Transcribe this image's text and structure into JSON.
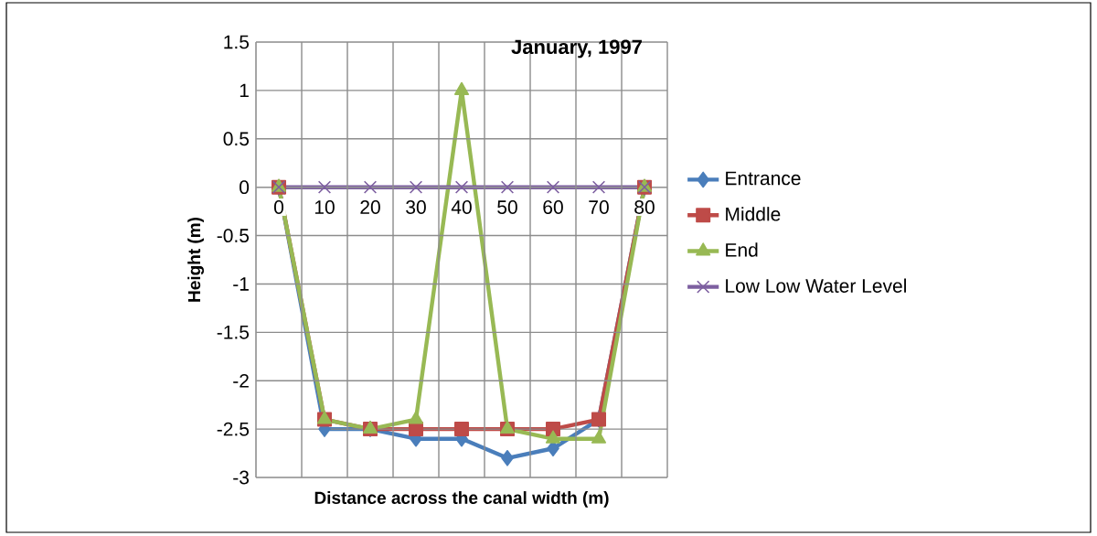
{
  "chart_data": {
    "type": "line",
    "title": "January, 1997",
    "xlabel": "Distance across the canal width (m)",
    "ylabel": "Height (m)",
    "categories": [
      "0",
      "10",
      "20",
      "30",
      "40",
      "50",
      "60",
      "70",
      "80"
    ],
    "series": [
      {
        "name": "Entrance",
        "color": "#4a7ebb",
        "marker": "diamond",
        "values": [
          0,
          -2.5,
          -2.5,
          -2.6,
          -2.6,
          -2.8,
          -2.7,
          -2.4,
          0
        ]
      },
      {
        "name": "Middle",
        "color": "#be4b48",
        "marker": "square",
        "values": [
          0,
          -2.4,
          -2.5,
          -2.5,
          -2.5,
          -2.5,
          -2.5,
          -2.4,
          0
        ]
      },
      {
        "name": "End",
        "color": "#98b954",
        "marker": "triangle",
        "values": [
          0,
          -2.4,
          -2.5,
          -2.4,
          1,
          -2.5,
          -2.6,
          -2.6,
          0
        ]
      },
      {
        "name": "Low Low Water Level",
        "color": "#7d5fa0",
        "marker": "cross",
        "values": [
          0,
          0,
          0,
          0,
          0,
          0,
          0,
          0,
          0
        ]
      }
    ],
    "ylim": [
      -3,
      1.5
    ],
    "yticks": [
      -3,
      -2.5,
      -2,
      -1.5,
      -1,
      -0.5,
      0,
      0.5,
      1,
      1.5
    ],
    "grid": true,
    "legend": "right",
    "line_style": "solid"
  }
}
